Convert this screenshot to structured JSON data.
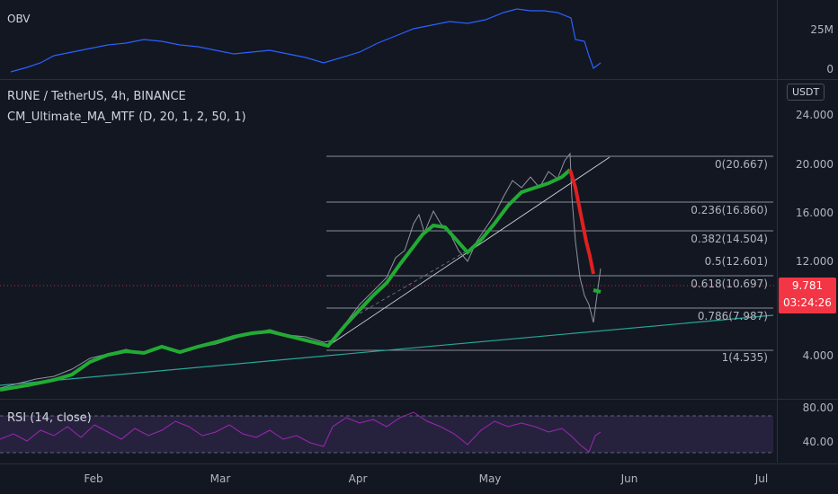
{
  "obv": {
    "title": "OBV",
    "ticks": [
      "25M",
      "0"
    ]
  },
  "main": {
    "symbol_title": "RUNE / TetherUS, 4h, BINANCE",
    "indicator_title": "CM_Ultimate_MA_MTF (D, 20, 1, 2, 50, 1)",
    "currency_button": "USDT",
    "price_ticks": [
      "24.000",
      "20.000",
      "16.000",
      "12.000",
      "4.000"
    ],
    "fib_levels": [
      {
        "label": "0(20.667)"
      },
      {
        "label": "0.236(16.860)"
      },
      {
        "label": "0.382(14.504)"
      },
      {
        "label": "0.5(12.601)"
      },
      {
        "label": "0.618(10.697)"
      },
      {
        "label": "0.786(7.987)"
      },
      {
        "label": "1(4.535)"
      }
    ],
    "current_price": "9.781",
    "countdown": "03:24:26"
  },
  "rsi": {
    "title": "RSI (14, close)",
    "ticks": [
      "80.00",
      "40.00"
    ]
  },
  "time_axis": [
    "Feb",
    "Mar",
    "Apr",
    "May",
    "Jun",
    "Jul"
  ],
  "colors": {
    "background": "#131722",
    "ma_up": "#22ab34",
    "ma_down": "#e02020",
    "obv_line": "#2962ff",
    "rsi_line": "#9c27b0",
    "trend_line": "#26a69a",
    "current_price": "#f23645"
  }
}
